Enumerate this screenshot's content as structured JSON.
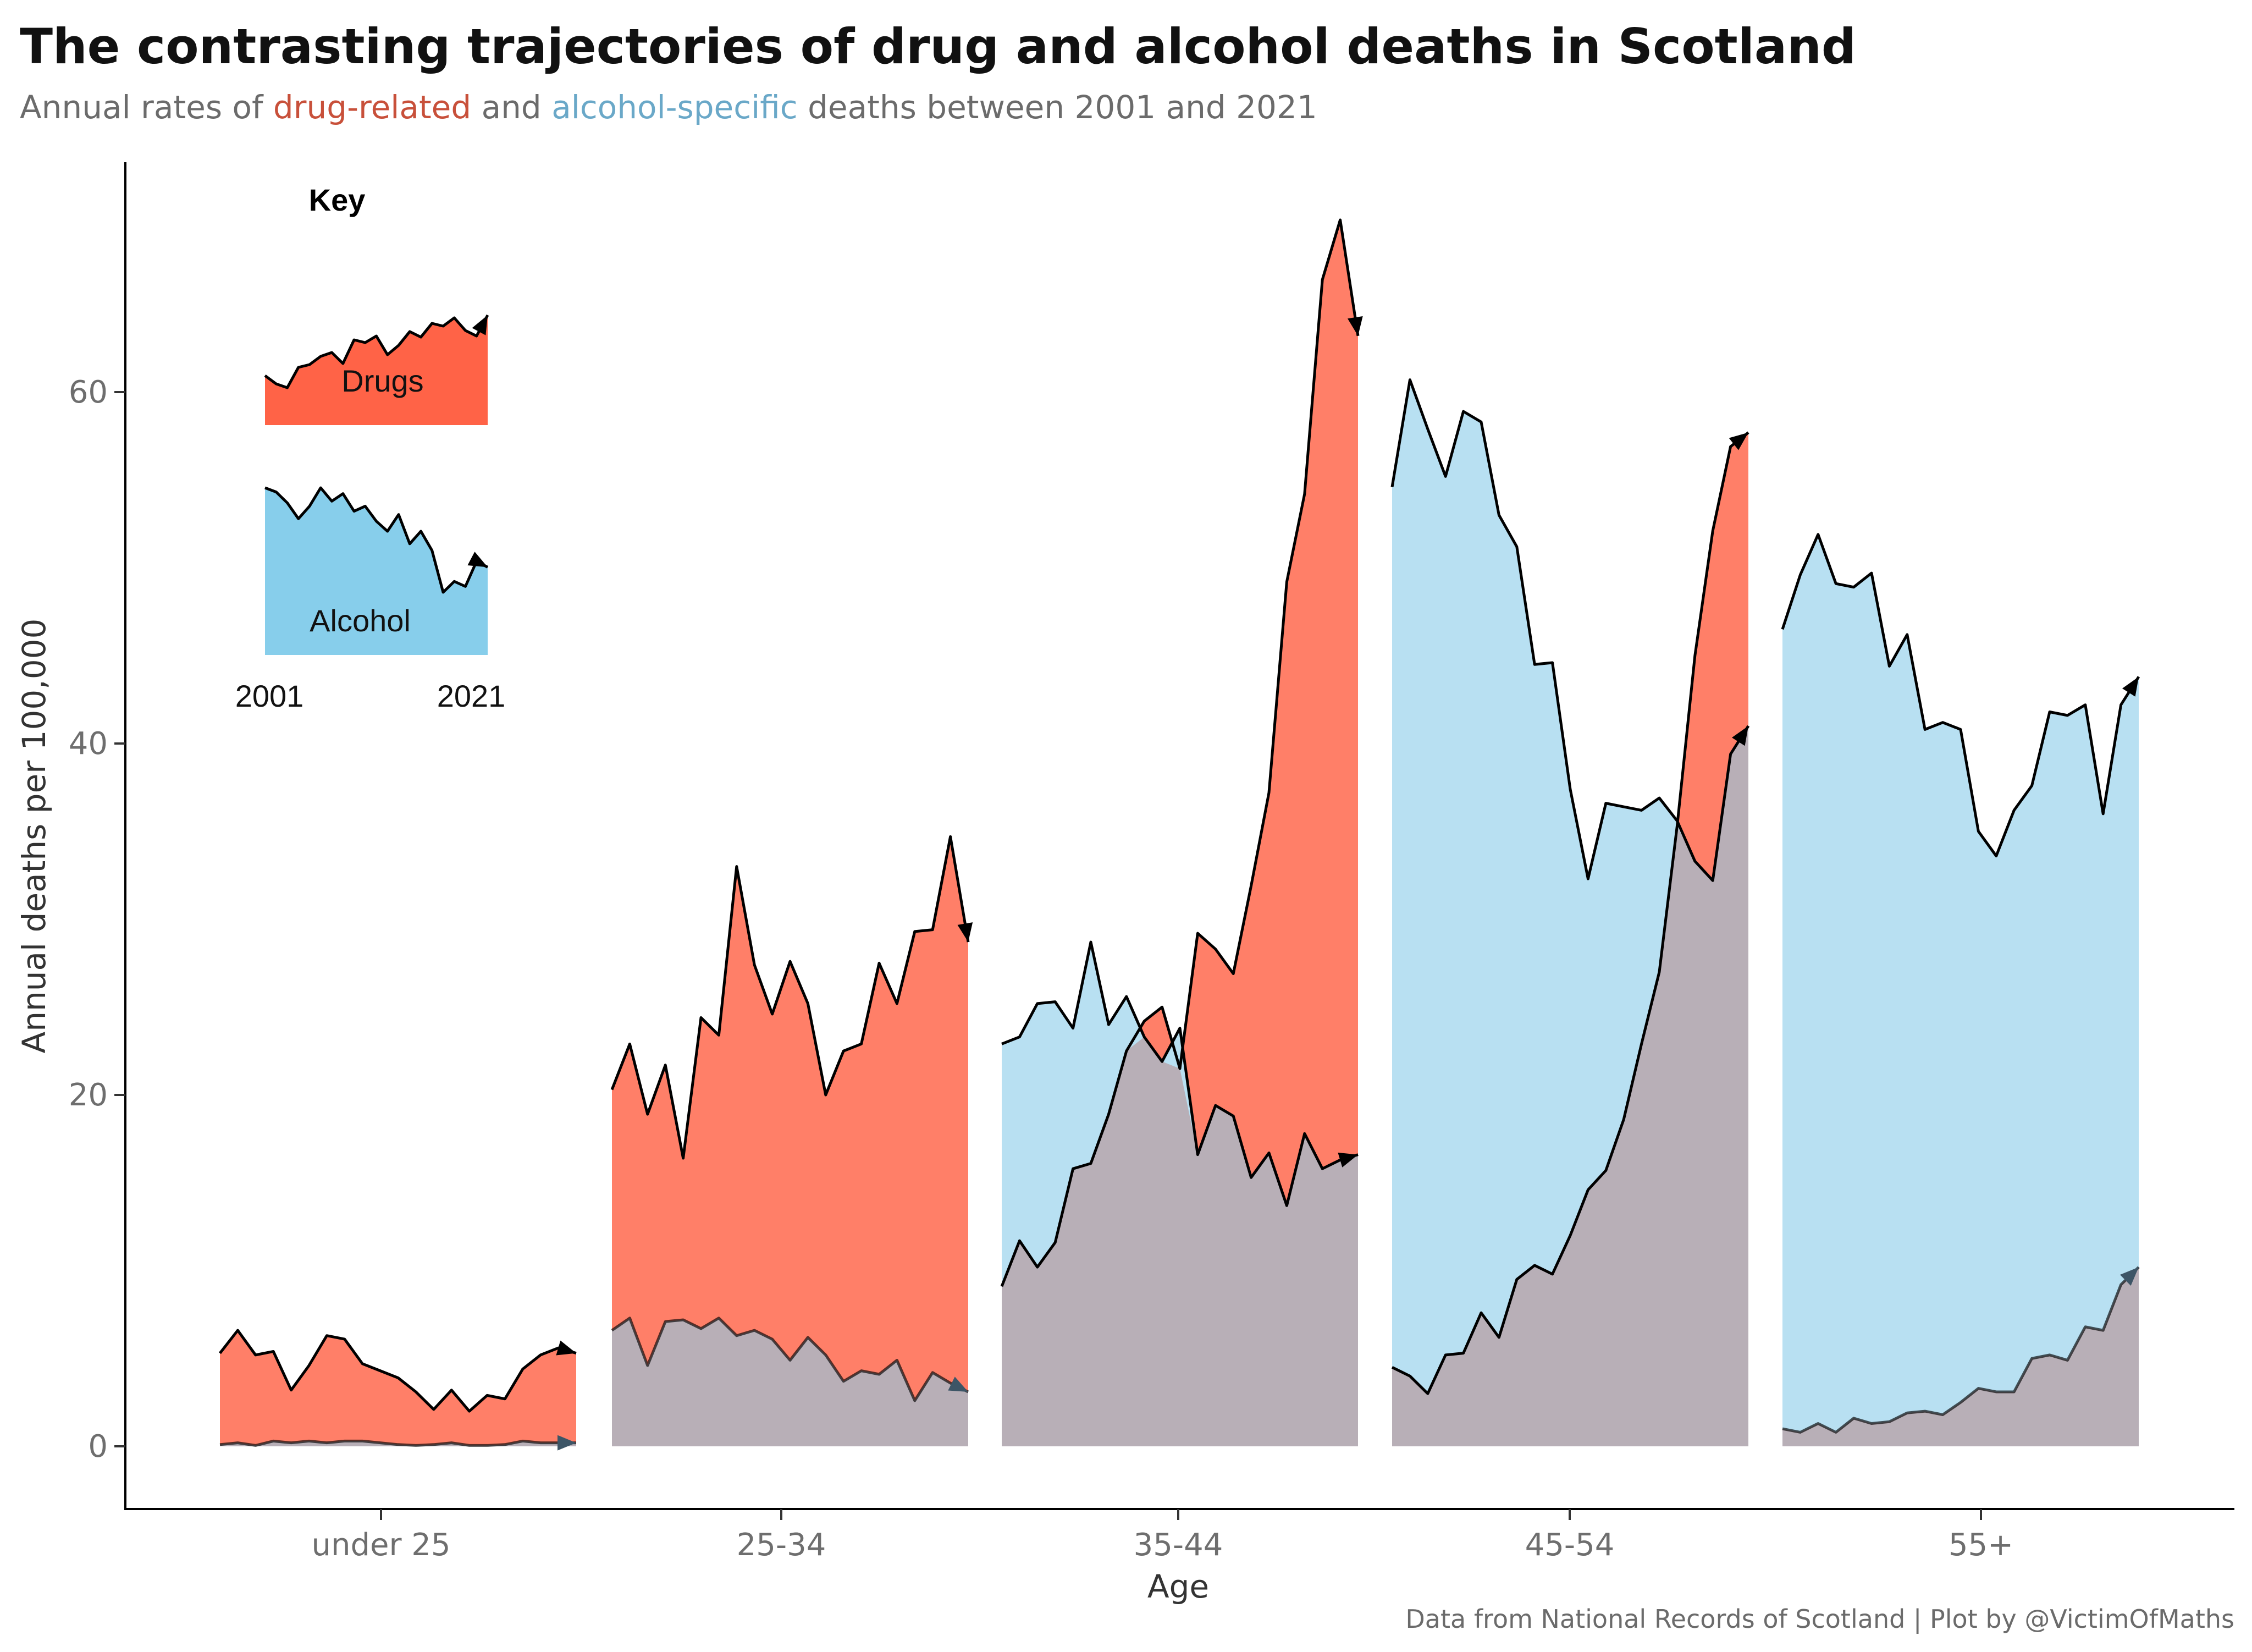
{
  "chart_data": {
    "type": "area",
    "title": "The contrasting trajectories of drug and alcohol deaths in Scotland",
    "subtitle": {
      "prefix": "Annual rates of ",
      "drugs_term": "drug-related",
      "middle": "  and ",
      "alcohol_term": "alcohol-specific",
      "suffix": "  deaths between 2001 and 2021"
    },
    "xlabel": "Age",
    "ylabel": "Annual deaths per 100,000",
    "ylim": [
      -3.5,
      73
    ],
    "yticks": [
      0,
      20,
      40,
      60
    ],
    "caption": "Data from National Records of Scotland | Plot by @VictimOfMaths",
    "colors": {
      "drugs": "#FF7F68",
      "alcohol": "#B8E0F2",
      "overlap": "#B8AFB7",
      "drugs_text": "#C8503A",
      "alcohol_text": "#6AA8C8",
      "key_drugs": "#FF6347",
      "key_alcohol": "#87CEEB"
    },
    "years": [
      2001,
      2021
    ],
    "groups": [
      {
        "label": "under 25",
        "drugs": [
          5.3,
          6.6,
          5.2,
          5.4,
          3.2,
          4.6,
          6.3,
          6.1,
          4.7,
          4.3,
          3.9,
          3.1,
          2.1,
          3.2,
          2.0,
          2.9,
          2.7,
          4.4,
          5.2,
          5.6,
          5.3
        ],
        "alcohol": [
          0.1,
          0.2,
          0.05,
          0.3,
          0.2,
          0.3,
          0.2,
          0.3,
          0.3,
          0.2,
          0.1,
          0.05,
          0.1,
          0.2,
          0.05,
          0.05,
          0.1,
          0.3,
          0.2,
          0.2,
          0.2
        ]
      },
      {
        "label": "25-34",
        "drugs": [
          20.3,
          22.9,
          18.9,
          21.7,
          16.4,
          24.4,
          23.4,
          33.0,
          27.4,
          24.6,
          27.6,
          25.2,
          20.0,
          22.5,
          22.9,
          27.5,
          25.2,
          29.3,
          29.4,
          34.7,
          28.7
        ],
        "alcohol": [
          6.6,
          7.3,
          4.6,
          7.1,
          7.2,
          6.7,
          7.3,
          6.3,
          6.6,
          6.1,
          4.9,
          6.2,
          5.2,
          3.7,
          4.3,
          4.1,
          4.9,
          2.6,
          4.2,
          3.6,
          3.1
        ]
      },
      {
        "label": "35-44",
        "drugs": [
          9.1,
          11.7,
          10.2,
          11.6,
          15.8,
          16.1,
          18.9,
          22.5,
          24.2,
          25.0,
          21.5,
          29.2,
          28.3,
          26.9,
          31.9,
          37.2,
          49.2,
          54.2,
          66.4,
          69.8,
          63.2
        ],
        "alcohol": [
          22.9,
          23.3,
          25.2,
          25.3,
          23.8,
          28.7,
          24.0,
          25.6,
          23.3,
          21.9,
          23.8,
          16.6,
          19.4,
          18.8,
          15.3,
          16.7,
          13.7,
          17.8,
          15.8,
          16.3,
          16.6
        ]
      },
      {
        "label": "45-54",
        "drugs": [
          4.5,
          4.0,
          3.0,
          5.2,
          5.3,
          7.6,
          6.2,
          9.5,
          10.3,
          9.8,
          12.0,
          14.6,
          15.7,
          18.6,
          22.9,
          27.0,
          35.3,
          45.0,
          52.1,
          56.9,
          57.7
        ],
        "alcohol": [
          54.6,
          60.7,
          57.9,
          55.2,
          58.9,
          58.3,
          53.0,
          51.2,
          44.5,
          44.6,
          37.4,
          32.3,
          36.6,
          36.4,
          36.2,
          36.9,
          35.6,
          33.3,
          32.2,
          39.4,
          41.0
        ]
      },
      {
        "label": "55+",
        "drugs": [
          1.0,
          0.8,
          1.3,
          0.8,
          1.6,
          1.3,
          1.4,
          1.9,
          2.0,
          1.8,
          2.5,
          3.3,
          3.1,
          3.1,
          5.0,
          5.2,
          4.9,
          6.8,
          6.6,
          9.2,
          10.2
        ],
        "alcohol": [
          46.5,
          49.6,
          51.9,
          49.1,
          48.9,
          49.7,
          44.4,
          46.2,
          40.8,
          41.2,
          40.8,
          35.0,
          33.6,
          36.2,
          37.6,
          41.8,
          41.6,
          42.2,
          36.0,
          42.2,
          43.8
        ]
      }
    ],
    "key": {
      "title": "Key",
      "drugs_label": "Drugs",
      "alcohol_label": "Alcohol",
      "start_year": "2001",
      "end_year": "2021",
      "drugs_shape": [
        0.9,
        0.75,
        0.68,
        1.05,
        1.1,
        1.25,
        1.32,
        1.12,
        1.55,
        1.5,
        1.62,
        1.28,
        1.45,
        1.7,
        1.6,
        1.85,
        1.8,
        1.95,
        1.72,
        1.62,
        2.0
      ],
      "alcohol_shape": [
        2.0,
        1.95,
        1.82,
        1.63,
        1.78,
        2.0,
        1.84,
        1.93,
        1.72,
        1.78,
        1.6,
        1.48,
        1.68,
        1.33,
        1.48,
        1.25,
        0.75,
        0.88,
        0.82,
        1.12,
        1.05
      ]
    }
  }
}
